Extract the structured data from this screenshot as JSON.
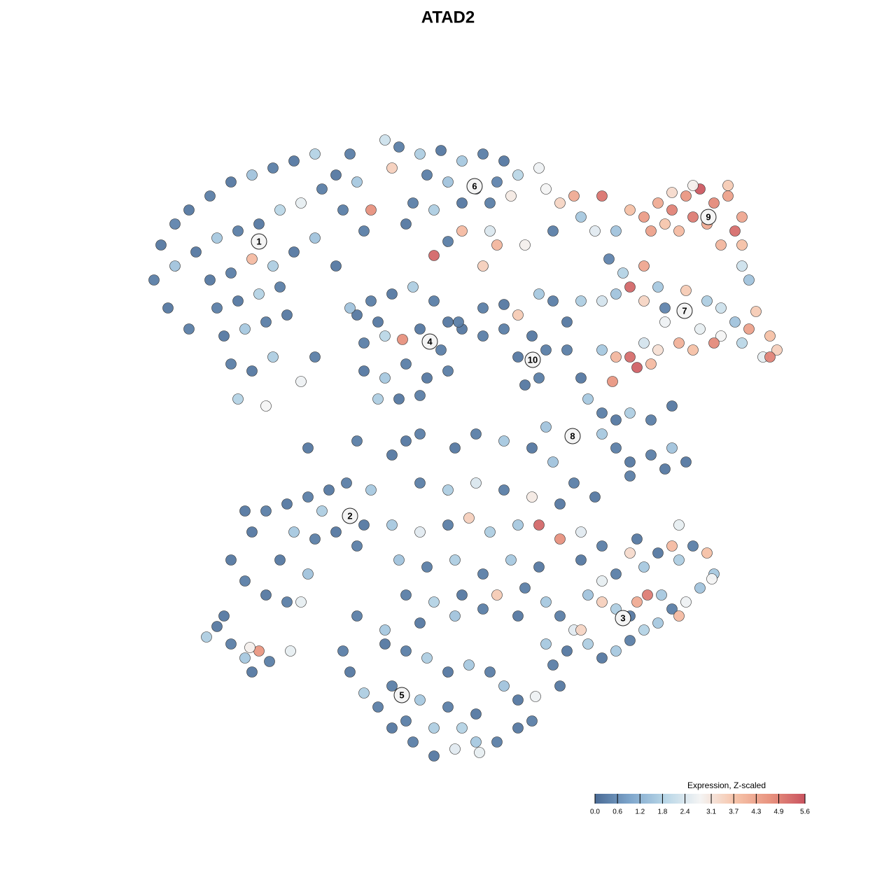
{
  "chart_data": {
    "type": "scatter",
    "title": "ATAD2",
    "xlim": [
      0,
      930
    ],
    "ylim": [
      0,
      905
    ],
    "clim": [
      0,
      5.6
    ],
    "colorscale": [
      "#4a6b95",
      "#7ea6cc",
      "#b8d6e7",
      "#f4f4f4",
      "#f6c4aa",
      "#e8937f",
      "#c9535f"
    ],
    "colorbar": {
      "title": "Expression, Z-scaled",
      "ticks": [
        {
          "value": 0,
          "label": "0.0"
        },
        0.6,
        1.2,
        1.8,
        2.4,
        3.1,
        3.7,
        4.3,
        4.9,
        5.6
      ]
    },
    "x": [
      20,
      30,
      50,
      70,
      100,
      130,
      160,
      190,
      220,
      250,
      80,
      110,
      140,
      170,
      200,
      230,
      260,
      100,
      130,
      160,
      190,
      220,
      250,
      110,
      140,
      170,
      200,
      120,
      150,
      180,
      210,
      130,
      160,
      190,
      140,
      180,
      230,
      40,
      70,
      50,
      280,
      300,
      310,
      330,
      290,
      280,
      320,
      360,
      350,
      370,
      400,
      430,
      460,
      490,
      520,
      540,
      410,
      440,
      480,
      510,
      390,
      420,
      460,
      500,
      530,
      570,
      380,
      420,
      460,
      510,
      490,
      550,
      440,
      500,
      680,
      700,
      720,
      740,
      760,
      780,
      800,
      820,
      840,
      860,
      850,
      830,
      810,
      790,
      770,
      750,
      730,
      860,
      860,
      870,
      840,
      790,
      760,
      660,
      580,
      600,
      620,
      630,
      650,
      590,
      670,
      690,
      700,
      720,
      740,
      630,
      660,
      680,
      720,
      750,
      780,
      810,
      830,
      850,
      880,
      870,
      900,
      910,
      890,
      860,
      830,
      800,
      820,
      790,
      770,
      750,
      740,
      720,
      700,
      710,
      680,
      660,
      730,
      675,
      900,
      490,
      520,
      540,
      570,
      590,
      560,
      580,
      540,
      570,
      550,
      520,
      460,
      490,
      610,
      610,
      310,
      330,
      360,
      390,
      420,
      440,
      320,
      350,
      375,
      400,
      430,
      320,
      350,
      380,
      410,
      440,
      340,
      370,
      400,
      300,
      250,
      340,
      630,
      640,
      660,
      680,
      700,
      730,
      760,
      680,
      700,
      730,
      760,
      780,
      700,
      750,
      620,
      580,
      660,
      360,
      400,
      450,
      480,
      520,
      560,
      590,
      620,
      650,
      400,
      440,
      480,
      520,
      560,
      600,
      360,
      400,
      440,
      470,
      500,
      540,
      570,
      600,
      630,
      370,
      410,
      450,
      490,
      530,
      570,
      380,
      420,
      460,
      510,
      550,
      310,
      350,
      400,
      450,
      490,
      540,
      330,
      380,
      310,
      240,
      455,
      130,
      150,
      180,
      210,
      230,
      160,
      180,
      210,
      240,
      270,
      295,
      220,
      250,
      280,
      310,
      200,
      240,
      260,
      320,
      150,
      95,
      110,
      130,
      150,
      170,
      160,
      185,
      157,
      215,
      120,
      290,
      300,
      320,
      340,
      360,
      390,
      420,
      450,
      480,
      510,
      540,
      560,
      540,
      520,
      500,
      470,
      440,
      410,
      380,
      350,
      360,
      400,
      440,
      480,
      420,
      380,
      485,
      565,
      460,
      580,
      600,
      620,
      640,
      660,
      680,
      700,
      720,
      740,
      760,
      780,
      800,
      820,
      810,
      790,
      770,
      760,
      740,
      720,
      700,
      680,
      660,
      640,
      660,
      680,
      700,
      725,
      710,
      630,
      610,
      590,
      600,
      580,
      770,
      745,
      630,
      660,
      710,
      770,
      817
    ],
    "y": [
      690,
      740,
      770,
      790,
      810,
      830,
      840,
      850,
      860,
      870,
      730,
      750,
      760,
      770,
      790,
      800,
      820,
      690,
      700,
      720,
      710,
      730,
      750,
      650,
      660,
      670,
      680,
      610,
      620,
      630,
      640,
      570,
      560,
      580,
      520,
      510,
      545,
      650,
      620,
      710,
      840,
      870,
      830,
      790,
      790,
      710,
      760,
      850,
      890,
      880,
      870,
      875,
      860,
      870,
      860,
      840,
      840,
      830,
      820,
      830,
      800,
      790,
      800,
      800,
      810,
      850,
      770,
      725,
      760,
      740,
      710,
      740,
      745,
      760,
      760,
      790,
      780,
      800,
      790,
      810,
      820,
      800,
      810,
      780,
      760,
      740,
      770,
      780,
      760,
      770,
      760,
      740,
      710,
      690,
      825,
      825,
      815,
      810,
      820,
      800,
      810,
      780,
      760,
      760,
      720,
      700,
      680,
      710,
      680,
      660,
      660,
      670,
      660,
      650,
      675,
      660,
      650,
      630,
      645,
      620,
      610,
      590,
      580,
      600,
      610,
      620,
      600,
      590,
      600,
      630,
      590,
      600,
      580,
      565,
      580,
      590,
      570,
      545,
      580,
      650,
      655,
      640,
      670,
      660,
      610,
      590,
      580,
      550,
      540,
      620,
      620,
      610,
      630,
      590,
      640,
      660,
      670,
      680,
      660,
      630,
      600,
      610,
      605,
      620,
      590,
      560,
      550,
      570,
      550,
      560,
      520,
      520,
      525,
      650,
      580,
      630,
      550,
      520,
      500,
      490,
      500,
      490,
      510,
      450,
      430,
      440,
      450,
      430,
      410,
      420,
      470,
      480,
      470,
      440,
      470,
      450,
      470,
      460,
      450,
      430,
      400,
      380,
      400,
      390,
      400,
      390,
      380,
      370,
      340,
      330,
      340,
      350,
      330,
      340,
      340,
      320,
      330,
      290,
      280,
      290,
      270,
      290,
      280,
      240,
      230,
      240,
      240,
      250,
      210,
      190,
      200,
      210,
      220,
      210,
      390,
      460,
      460,
      450,
      630,
      290,
      260,
      240,
      230,
      230,
      330,
      360,
      370,
      380,
      390,
      400,
      330,
      320,
      330,
      310,
      290,
      270,
      360,
      340,
      360,
      180,
      195,
      170,
      150,
      160,
      130,
      145,
      165,
      160,
      210,
      160,
      130,
      100,
      80,
      50,
      30,
      10,
      20,
      30,
      30,
      50,
      60,
      90,
      110,
      130,
      140,
      130,
      150,
      160,
      170,
      110,
      90,
      80,
      70,
      50,
      60,
      15,
      95,
      50,
      230,
      210,
      190,
      170,
      150,
      160,
      175,
      190,
      200,
      220,
      230,
      250,
      270,
      300,
      310,
      290,
      310,
      300,
      280,
      300,
      270,
      260,
      240,
      230,
      220,
      210,
      240,
      230,
      190,
      160,
      140,
      110,
      170,
      340,
      240,
      290,
      310,
      320,
      210,
      263
    ],
    "values": [
      0.3,
      0.2,
      0.4,
      0.2,
      0.3,
      0.2,
      1.5,
      0.3,
      0.2,
      1.8,
      0.2,
      1.6,
      0.3,
      0.2,
      1.9,
      2.6,
      0.3,
      0.2,
      0.3,
      3.9,
      1.7,
      0.2,
      1.5,
      0.3,
      0.2,
      1.8,
      0.3,
      0.2,
      1.6,
      0.3,
      0.2,
      0.3,
      0.2,
      1.7,
      1.8,
      2.8,
      2.7,
      0.2,
      0.3,
      1.5,
      0.2,
      0.3,
      1.6,
      4.7,
      0.3,
      0.2,
      0.3,
      3.5,
      2.2,
      0.3,
      1.7,
      0.2,
      1.6,
      0.3,
      0.2,
      1.9,
      0.3,
      1.5,
      0.2,
      0.4,
      0.3,
      1.7,
      0.2,
      0.3,
      3.0,
      2.7,
      0.2,
      5.3,
      3.9,
      4.0,
      3.5,
      2.9,
      0.3,
      2.4,
      1.5,
      3.8,
      4.5,
      4.2,
      4.9,
      4.6,
      5.5,
      4.8,
      4.4,
      4.3,
      5.2,
      4.0,
      4.2,
      5.0,
      3.9,
      3.7,
      4.4,
      3.8,
      2.2,
      1.5,
      3.6,
      2.9,
      3.3,
      5.1,
      2.8,
      3.4,
      4.2,
      1.6,
      2.5,
      0.3,
      0.4,
      1.8,
      5.3,
      4.3,
      1.6,
      1.7,
      2.3,
      1.5,
      3.4,
      0.4,
      3.6,
      1.7,
      2.2,
      1.5,
      3.6,
      4.4,
      3.8,
      3.5,
      2.6,
      1.9,
      2.8,
      2.6,
      4.8,
      3.8,
      4.1,
      2.7,
      3.2,
      2.3,
      5.2,
      5.4,
      4.0,
      1.6,
      3.9,
      4.6,
      4.9,
      0.3,
      0.2,
      3.6,
      1.6,
      0.3,
      0.2,
      0.3,
      0.2,
      0.3,
      0.2,
      0.3,
      0.2,
      0.3,
      0.2,
      0.3,
      0.2,
      0.3,
      0.2,
      1.7,
      0.3,
      0.2,
      0.3,
      1.9,
      4.7,
      0.2,
      0.3,
      0.2,
      1.6,
      0.3,
      0.2,
      0.3,
      1.7,
      0.2,
      0.3,
      1.5,
      0.3,
      0.2,
      0.2,
      1.6,
      0.3,
      0.2,
      1.7,
      0.3,
      0.2,
      0.3,
      0.2,
      0.3,
      1.5,
      0.2,
      0.3,
      0.2,
      0.3,
      1.5,
      1.6,
      0.2,
      0.3,
      0.2,
      0.3,
      1.6,
      0.2,
      1.5,
      0.3,
      0.2,
      0.3,
      1.7,
      2.4,
      0.3,
      3.0,
      0.2,
      1.6,
      2.5,
      0.3,
      3.5,
      1.7,
      1.6,
      5.3,
      4.7,
      2.5,
      1.5,
      0.3,
      1.7,
      0.3,
      1.6,
      0.2,
      0.3,
      1.8,
      0.2,
      3.6,
      0.3,
      0.3,
      1.6,
      0.2,
      1.5,
      0.3,
      0.2,
      1.6,
      0.2,
      0.3,
      0.2,
      0.3,
      0.2,
      0.3,
      0.2,
      0.3,
      2.6,
      0.2,
      0.3,
      0.2,
      0.3,
      0.2,
      0.3,
      1.6,
      0.3,
      0.2,
      0.3,
      0.2,
      1.5,
      1.7,
      0.2,
      0.2,
      1.7,
      0.2,
      0.3,
      1.6,
      4.6,
      0.2,
      0.3,
      2.9,
      2.6,
      0.2,
      0.3,
      0.2,
      1.7,
      0.3,
      0.2,
      0.3,
      0.2,
      2.5,
      1.6,
      0.3,
      0.2,
      0.3,
      0.2,
      1.5,
      0.3,
      1.6,
      0.2,
      1.7,
      0.3,
      0.2,
      0.3,
      1.6,
      0.3,
      0.2,
      1.7,
      0.3,
      2.6,
      2.7,
      1.8,
      1.6,
      0.3,
      2.5,
      1.7,
      0.2,
      1.6,
      0.3,
      1.8,
      1.6,
      0.3,
      2.7,
      1.5,
      1.6,
      3.8,
      0.3,
      1.7,
      3.9,
      0.2,
      1.6,
      3.3,
      0.3,
      2.6,
      1.5,
      3.5,
      1.7,
      0.2,
      5.0,
      4.2,
      3.4,
      0.2,
      0.3,
      0.2,
      1.6,
      2.6,
      1.6,
      0.2,
      0.3,
      0.2,
      3.9,
      2.8
    ],
    "annotations": [
      {
        "text": "1",
        "x": 170,
        "y": 745
      },
      {
        "text": "2",
        "x": 300,
        "y": 353
      },
      {
        "text": "3",
        "x": 690,
        "y": 207
      },
      {
        "text": "4",
        "x": 414,
        "y": 602
      },
      {
        "text": "5",
        "x": 374,
        "y": 97
      },
      {
        "text": "6",
        "x": 478,
        "y": 824
      },
      {
        "text": "7",
        "x": 778,
        "y": 646
      },
      {
        "text": "8",
        "x": 618,
        "y": 467
      },
      {
        "text": "9",
        "x": 812,
        "y": 780
      },
      {
        "text": "10",
        "x": 561,
        "y": 576
      }
    ]
  }
}
